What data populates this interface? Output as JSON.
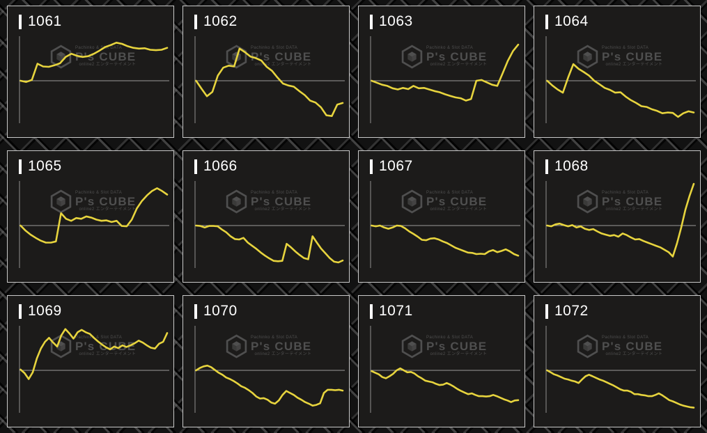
{
  "page": {
    "description": "Grid of 12 pachinko machine slump graphs (machines 1061-1072)",
    "background_color": "#121212"
  },
  "colors": {
    "panel_bg": "#1c1b1a",
    "panel_border": "#c9c9c9",
    "axis": "#8f8f8f",
    "zero_line": "#9b9b9b",
    "series": "#e7d43e",
    "title_text": "#ffffff",
    "watermark": "#525252"
  },
  "watermark": {
    "top_line": "Pachinko & Slot DATA",
    "brand": "P's CUBE",
    "bottom_line": "online2 エンターテイメント"
  },
  "chart_config": {
    "type": "line",
    "grid": false,
    "legend": false,
    "x_axis": "unlabeled (time / games played)",
    "y_axis": "unlabeled; values normalized to -1..1 around the horizontal zero baseline",
    "baseline": 0,
    "y_range_normalized": [
      -1.05,
      1.05
    ]
  },
  "chart_data": [
    {
      "type": "line",
      "title": "1061",
      "values": [
        0,
        -0.03,
        0.02,
        0.43,
        0.36,
        0.35,
        0.39,
        0.44,
        0.6,
        0.68,
        0.63,
        0.6,
        0.62,
        0.68,
        0.76,
        0.85,
        0.9,
        0.96,
        0.93,
        0.87,
        0.83,
        0.81,
        0.82,
        0.78,
        0.77,
        0.78,
        0.83
      ]
    },
    {
      "type": "line",
      "title": "1062",
      "values": [
        0,
        -0.2,
        -0.39,
        -0.28,
        0.13,
        0.33,
        0.38,
        0.36,
        0.81,
        0.72,
        0.61,
        0.57,
        0.51,
        0.35,
        0.25,
        0.08,
        -0.07,
        -0.12,
        -0.15,
        -0.26,
        -0.36,
        -0.5,
        -0.55,
        -0.67,
        -0.87,
        -0.89,
        -0.6,
        -0.56
      ]
    },
    {
      "type": "line",
      "title": "1063",
      "values": [
        0,
        -0.05,
        -0.1,
        -0.13,
        -0.19,
        -0.22,
        -0.18,
        -0.21,
        -0.13,
        -0.19,
        -0.18,
        -0.22,
        -0.26,
        -0.29,
        -0.34,
        -0.38,
        -0.42,
        -0.44,
        -0.5,
        -0.46,
        0.0,
        0.02,
        -0.04,
        -0.1,
        -0.13,
        0.18,
        0.5,
        0.75,
        0.91
      ]
    },
    {
      "type": "line",
      "title": "1064",
      "values": [
        0,
        -0.12,
        -0.22,
        -0.3,
        0.08,
        0.42,
        0.3,
        0.22,
        0.13,
        0,
        -0.09,
        -0.18,
        -0.23,
        -0.3,
        -0.29,
        -0.4,
        -0.49,
        -0.56,
        -0.64,
        -0.66,
        -0.72,
        -0.76,
        -0.82,
        -0.8,
        -0.81,
        -0.91,
        -0.82,
        -0.77,
        -0.8
      ]
    },
    {
      "type": "line",
      "title": "1065",
      "values": [
        0,
        -0.13,
        -0.23,
        -0.31,
        -0.38,
        -0.43,
        -0.43,
        -0.4,
        0.31,
        0.17,
        0.12,
        0.19,
        0.17,
        0.23,
        0.2,
        0.15,
        0.12,
        0.13,
        0.09,
        0.12,
        -0.01,
        -0.02,
        0.15,
        0.43,
        0.62,
        0.76,
        0.87,
        0.94,
        0.87,
        0.78
      ]
    },
    {
      "type": "line",
      "title": "1066",
      "values": [
        0,
        -0.01,
        -0.05,
        -0.01,
        -0.01,
        -0.02,
        -0.1,
        -0.17,
        -0.27,
        -0.34,
        -0.35,
        -0.31,
        -0.43,
        -0.51,
        -0.59,
        -0.68,
        -0.76,
        -0.83,
        -0.89,
        -0.9,
        -0.89,
        -0.46,
        -0.55,
        -0.65,
        -0.74,
        -0.82,
        -0.85,
        -0.27,
        -0.43,
        -0.58,
        -0.7,
        -0.82,
        -0.91,
        -0.93,
        -0.88
      ]
    },
    {
      "type": "line",
      "title": "1067",
      "values": [
        0,
        -0.02,
        0,
        -0.05,
        -0.08,
        -0.05,
        0,
        -0.01,
        -0.07,
        -0.15,
        -0.21,
        -0.28,
        -0.36,
        -0.37,
        -0.33,
        -0.32,
        -0.35,
        -0.4,
        -0.44,
        -0.5,
        -0.56,
        -0.6,
        -0.64,
        -0.68,
        -0.69,
        -0.72,
        -0.71,
        -0.72,
        -0.65,
        -0.62,
        -0.67,
        -0.64,
        -0.6,
        -0.65,
        -0.72,
        -0.76
      ]
    },
    {
      "type": "line",
      "title": "1068",
      "values": [
        0,
        -0.02,
        0.03,
        0.05,
        0.01,
        -0.02,
        0.01,
        -0.05,
        -0.02,
        -0.08,
        -0.11,
        -0.09,
        -0.15,
        -0.2,
        -0.23,
        -0.26,
        -0.24,
        -0.28,
        -0.2,
        -0.24,
        -0.3,
        -0.35,
        -0.34,
        -0.39,
        -0.43,
        -0.47,
        -0.51,
        -0.55,
        -0.61,
        -0.67,
        -0.78,
        -0.45,
        -0.05,
        0.4,
        0.75,
        1.05
      ]
    },
    {
      "type": "line",
      "title": "1069",
      "values": [
        0.02,
        -0.07,
        -0.22,
        -0.05,
        0.3,
        0.55,
        0.72,
        0.82,
        0.7,
        0.6,
        0.88,
        1.04,
        0.93,
        0.8,
        0.96,
        1.02,
        0.96,
        0.92,
        0.82,
        0.73,
        0.65,
        0.58,
        0.53,
        0.6,
        0.56,
        0.63,
        0.59,
        0.63,
        0.68,
        0.75,
        0.7,
        0.63,
        0.57,
        0.55,
        0.67,
        0.72,
        0.94
      ]
    },
    {
      "type": "line",
      "title": "1070",
      "values": [
        0,
        0.06,
        0.1,
        0.12,
        0.08,
        0.01,
        -0.06,
        -0.11,
        -0.18,
        -0.22,
        -0.27,
        -0.33,
        -0.4,
        -0.44,
        -0.5,
        -0.57,
        -0.66,
        -0.71,
        -0.7,
        -0.74,
        -0.81,
        -0.84,
        -0.76,
        -0.62,
        -0.52,
        -0.57,
        -0.62,
        -0.69,
        -0.74,
        -0.8,
        -0.84,
        -0.89,
        -0.87,
        -0.83,
        -0.57,
        -0.49,
        -0.49,
        -0.5,
        -0.49,
        -0.51
      ]
    },
    {
      "type": "line",
      "title": "1071",
      "values": [
        -0.02,
        -0.06,
        -0.1,
        -0.17,
        -0.2,
        -0.15,
        -0.09,
        0,
        0.05,
        0,
        -0.05,
        -0.04,
        -0.08,
        -0.15,
        -0.2,
        -0.26,
        -0.28,
        -0.3,
        -0.34,
        -0.37,
        -0.36,
        -0.32,
        -0.36,
        -0.41,
        -0.47,
        -0.52,
        -0.56,
        -0.6,
        -0.58,
        -0.62,
        -0.65,
        -0.65,
        -0.66,
        -0.65,
        -0.62,
        -0.65,
        -0.69,
        -0.73,
        -0.76,
        -0.8,
        -0.76,
        -0.75
      ]
    },
    {
      "type": "line",
      "title": "1072",
      "values": [
        0,
        -0.05,
        -0.1,
        -0.13,
        -0.17,
        -0.21,
        -0.23,
        -0.26,
        -0.28,
        -0.32,
        -0.23,
        -0.15,
        -0.11,
        -0.15,
        -0.19,
        -0.23,
        -0.26,
        -0.3,
        -0.34,
        -0.38,
        -0.43,
        -0.48,
        -0.51,
        -0.51,
        -0.54,
        -0.6,
        -0.6,
        -0.62,
        -0.63,
        -0.65,
        -0.65,
        -0.62,
        -0.58,
        -0.63,
        -0.69,
        -0.75,
        -0.78,
        -0.82,
        -0.86,
        -0.89,
        -0.91,
        -0.93,
        -0.94
      ]
    }
  ]
}
